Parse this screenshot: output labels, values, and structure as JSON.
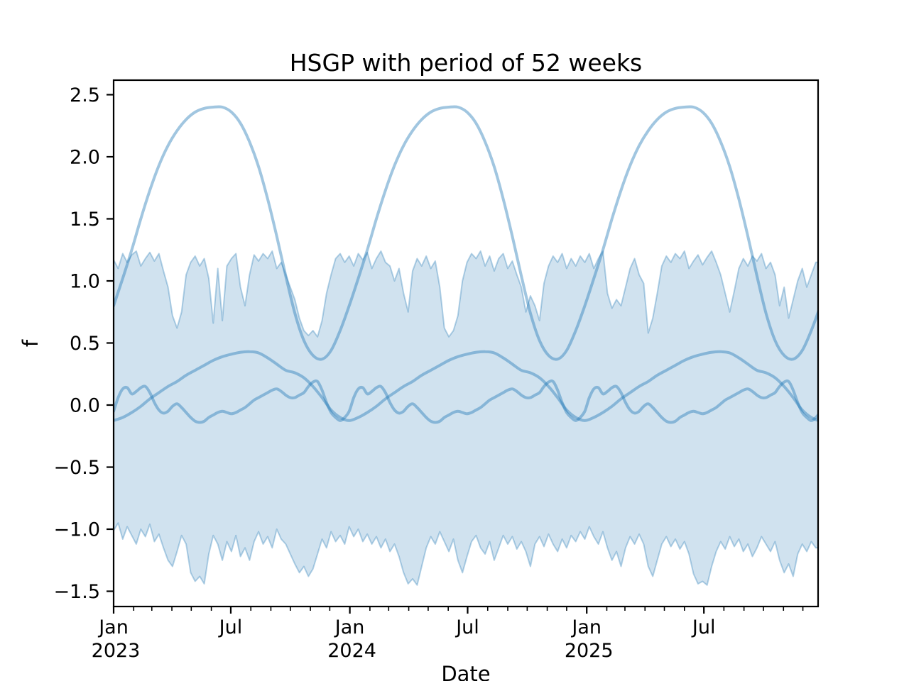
{
  "chart_data": {
    "type": "line",
    "title": "HSGP with period of 52 weeks",
    "xlabel": "Date",
    "ylabel": "f",
    "legend": "none",
    "grid": false,
    "x_unit": "weeks since 2023-01-01",
    "x_range_weeks": [
      0,
      155.5
    ],
    "ylim": [
      -1.62,
      2.62
    ],
    "period_weeks": 52,
    "colors": {
      "base_line": "#1f77b4",
      "sample_stroke": "rgba(31,119,180,0.42)",
      "band_fill": "rgba(31,119,180,0.21)",
      "band_edge": "rgba(31,119,180,0.33)",
      "axis": "#000000",
      "background": "#ffffff"
    },
    "yticks": {
      "values": [
        2.5,
        2.0,
        1.5,
        1.0,
        0.5,
        0.0,
        -0.5,
        -1.0,
        -1.5
      ],
      "labels": [
        "2.5",
        "2.0",
        "1.5",
        "1.0",
        "0.5",
        "0.0",
        "−0.5",
        "−1.0",
        "−1.5"
      ]
    },
    "xticks_major": [
      {
        "week": 0,
        "line1": "Jan",
        "line2": "2023"
      },
      {
        "week": 25.86,
        "line1": "Jul",
        "line2": ""
      },
      {
        "week": 52.14,
        "line1": "Jan",
        "line2": "2024"
      },
      {
        "week": 78.14,
        "line1": "Jul",
        "line2": ""
      },
      {
        "week": 104.43,
        "line1": "Jan",
        "line2": "2025"
      },
      {
        "week": 130.29,
        "line1": "Jul",
        "line2": ""
      }
    ],
    "xticks_minor_weeks": [
      0,
      4.43,
      8.43,
      12.86,
      17.14,
      21.57,
      25.86,
      30.29,
      34.71,
      39.0,
      43.43,
      47.71,
      52.14,
      56.57,
      60.71,
      65.14,
      69.43,
      73.86,
      78.14,
      82.57,
      87.0,
      91.29,
      95.71,
      100.0,
      104.43,
      108.86,
      112.86,
      117.29,
      121.57,
      126.0,
      130.29,
      134.71,
      139.14,
      143.43,
      147.86,
      152.14
    ],
    "band": {
      "name": "uncertainty-band",
      "weeks_step": 1,
      "top": [
        1.17,
        1.1,
        1.22,
        1.15,
        1.21,
        1.24,
        1.12,
        1.18,
        1.23,
        1.16,
        1.22,
        1.08,
        0.95,
        0.72,
        0.62,
        0.75,
        1.05,
        1.15,
        1.2,
        1.12,
        1.18,
        1.02,
        0.66,
        1.1,
        0.68,
        1.12,
        1.18,
        1.22,
        0.95,
        0.8,
        1.05,
        1.21,
        1.16,
        1.22,
        1.18,
        1.24,
        1.1,
        1.15,
        1.05,
        0.95,
        0.85,
        0.7,
        0.6,
        0.56,
        0.6,
        0.55,
        0.68,
        0.9,
        1.05,
        1.18,
        1.22,
        1.15,
        1.2,
        1.12,
        1.22,
        1.17,
        1.23,
        1.1,
        1.18,
        1.24,
        1.15,
        1.12,
        1.0,
        1.1,
        0.9,
        0.75,
        1.08,
        1.18,
        1.12,
        1.2,
        1.1,
        1.16,
        0.95,
        0.62,
        0.55,
        0.6,
        0.72,
        1.0,
        1.15,
        1.22,
        1.18,
        1.24,
        1.12,
        1.2,
        1.08,
        1.18,
        1.22,
        1.1,
        1.16,
        1.05,
        0.95,
        0.75,
        0.88,
        0.8,
        0.68,
        0.98,
        1.12,
        1.2,
        1.15,
        1.22,
        1.1,
        1.18,
        1.12,
        1.2,
        1.15,
        1.22,
        1.1,
        1.18,
        1.24,
        0.9,
        0.78,
        0.85,
        0.8,
        0.95,
        1.1,
        1.18,
        1.05,
        0.98,
        0.58,
        0.7,
        0.9,
        1.12,
        1.2,
        1.15,
        1.22,
        1.18,
        1.24,
        1.1,
        1.16,
        1.21,
        1.13,
        1.19,
        1.24,
        1.15,
        1.05,
        0.9,
        0.75,
        0.92,
        1.1,
        1.18,
        1.12,
        1.2,
        1.16,
        1.22,
        1.1,
        1.15,
        1.05,
        0.8,
        0.95,
        0.7,
        0.85,
        1.0,
        1.1,
        0.95,
        1.05,
        1.15
      ],
      "bottom": [
        -1.01,
        -0.95,
        -1.08,
        -0.98,
        -1.05,
        -1.12,
        -1.0,
        -1.06,
        -0.96,
        -1.1,
        -1.04,
        -1.15,
        -1.25,
        -1.3,
        -1.18,
        -1.05,
        -1.12,
        -1.35,
        -1.42,
        -1.38,
        -1.44,
        -1.2,
        -1.05,
        -1.12,
        -1.25,
        -1.1,
        -1.18,
        -1.05,
        -1.22,
        -1.15,
        -1.25,
        -1.1,
        -1.02,
        -1.12,
        -1.06,
        -1.15,
        -1.0,
        -1.08,
        -1.12,
        -1.2,
        -1.28,
        -1.35,
        -1.3,
        -1.38,
        -1.32,
        -1.2,
        -1.08,
        -1.15,
        -1.02,
        -1.1,
        -1.05,
        -1.12,
        -0.98,
        -1.06,
        -1.0,
        -1.1,
        -1.04,
        -1.12,
        -1.06,
        -1.15,
        -1.08,
        -1.18,
        -1.12,
        -1.22,
        -1.35,
        -1.44,
        -1.4,
        -1.45,
        -1.3,
        -1.15,
        -1.06,
        -1.12,
        -1.02,
        -1.1,
        -1.18,
        -1.08,
        -1.25,
        -1.35,
        -1.22,
        -1.1,
        -1.05,
        -1.15,
        -1.2,
        -1.1,
        -1.25,
        -1.15,
        -1.05,
        -1.12,
        -1.06,
        -1.16,
        -1.1,
        -1.18,
        -1.3,
        -1.12,
        -1.06,
        -1.14,
        -1.04,
        -1.12,
        -1.18,
        -1.08,
        -1.15,
        -1.05,
        -1.1,
        -1.02,
        -1.08,
        -0.98,
        -1.06,
        -1.12,
        -1.02,
        -1.15,
        -1.25,
        -1.18,
        -1.3,
        -1.15,
        -1.06,
        -1.12,
        -1.04,
        -1.12,
        -1.3,
        -1.38,
        -1.25,
        -1.12,
        -1.06,
        -1.14,
        -1.08,
        -1.16,
        -1.1,
        -1.2,
        -1.36,
        -1.44,
        -1.42,
        -1.45,
        -1.3,
        -1.18,
        -1.1,
        -1.16,
        -1.06,
        -1.14,
        -1.08,
        -1.18,
        -1.12,
        -1.22,
        -1.15,
        -1.06,
        -1.12,
        -1.18,
        -1.1,
        -1.25,
        -1.35,
        -1.28,
        -1.38,
        -1.2,
        -1.12,
        -1.18,
        -1.1,
        -1.15
      ]
    },
    "samples": [
      {
        "name": "sample-large-annual",
        "step_weeks": 2,
        "cycle": [
          0.8,
          1.02,
          1.25,
          1.5,
          1.73,
          1.93,
          2.09,
          2.21,
          2.3,
          2.36,
          2.39,
          2.4,
          2.4,
          2.36,
          2.27,
          2.12,
          1.92,
          1.66,
          1.36,
          1.04,
          0.74,
          0.52,
          0.4,
          0.37,
          0.44,
          0.6
        ]
      },
      {
        "name": "sample-medium-annual",
        "step_weeks": 2,
        "cycle": [
          -0.125,
          -0.1,
          -0.06,
          -0.01,
          0.05,
          0.1,
          0.15,
          0.19,
          0.24,
          0.28,
          0.32,
          0.36,
          0.39,
          0.41,
          0.425,
          0.43,
          0.42,
          0.38,
          0.33,
          0.28,
          0.26,
          0.22,
          0.15,
          0.06,
          -0.04,
          -0.1
        ]
      },
      {
        "name": "sample-small-wiggly",
        "step_weeks": 1,
        "cycle": [
          -0.05,
          0.06,
          0.13,
          0.14,
          0.09,
          0.11,
          0.14,
          0.15,
          0.1,
          0.02,
          -0.04,
          -0.065,
          -0.05,
          -0.01,
          0.01,
          -0.02,
          -0.06,
          -0.1,
          -0.13,
          -0.14,
          -0.13,
          -0.1,
          -0.08,
          -0.06,
          -0.05,
          -0.06,
          -0.07,
          -0.06,
          -0.04,
          -0.02,
          0.01,
          0.04,
          0.06,
          0.08,
          0.1,
          0.12,
          0.13,
          0.11,
          0.08,
          0.06,
          0.06,
          0.08,
          0.1,
          0.15,
          0.185,
          0.19,
          0.12,
          0.02,
          -0.06,
          -0.1,
          -0.125,
          -0.1
        ]
      }
    ]
  }
}
